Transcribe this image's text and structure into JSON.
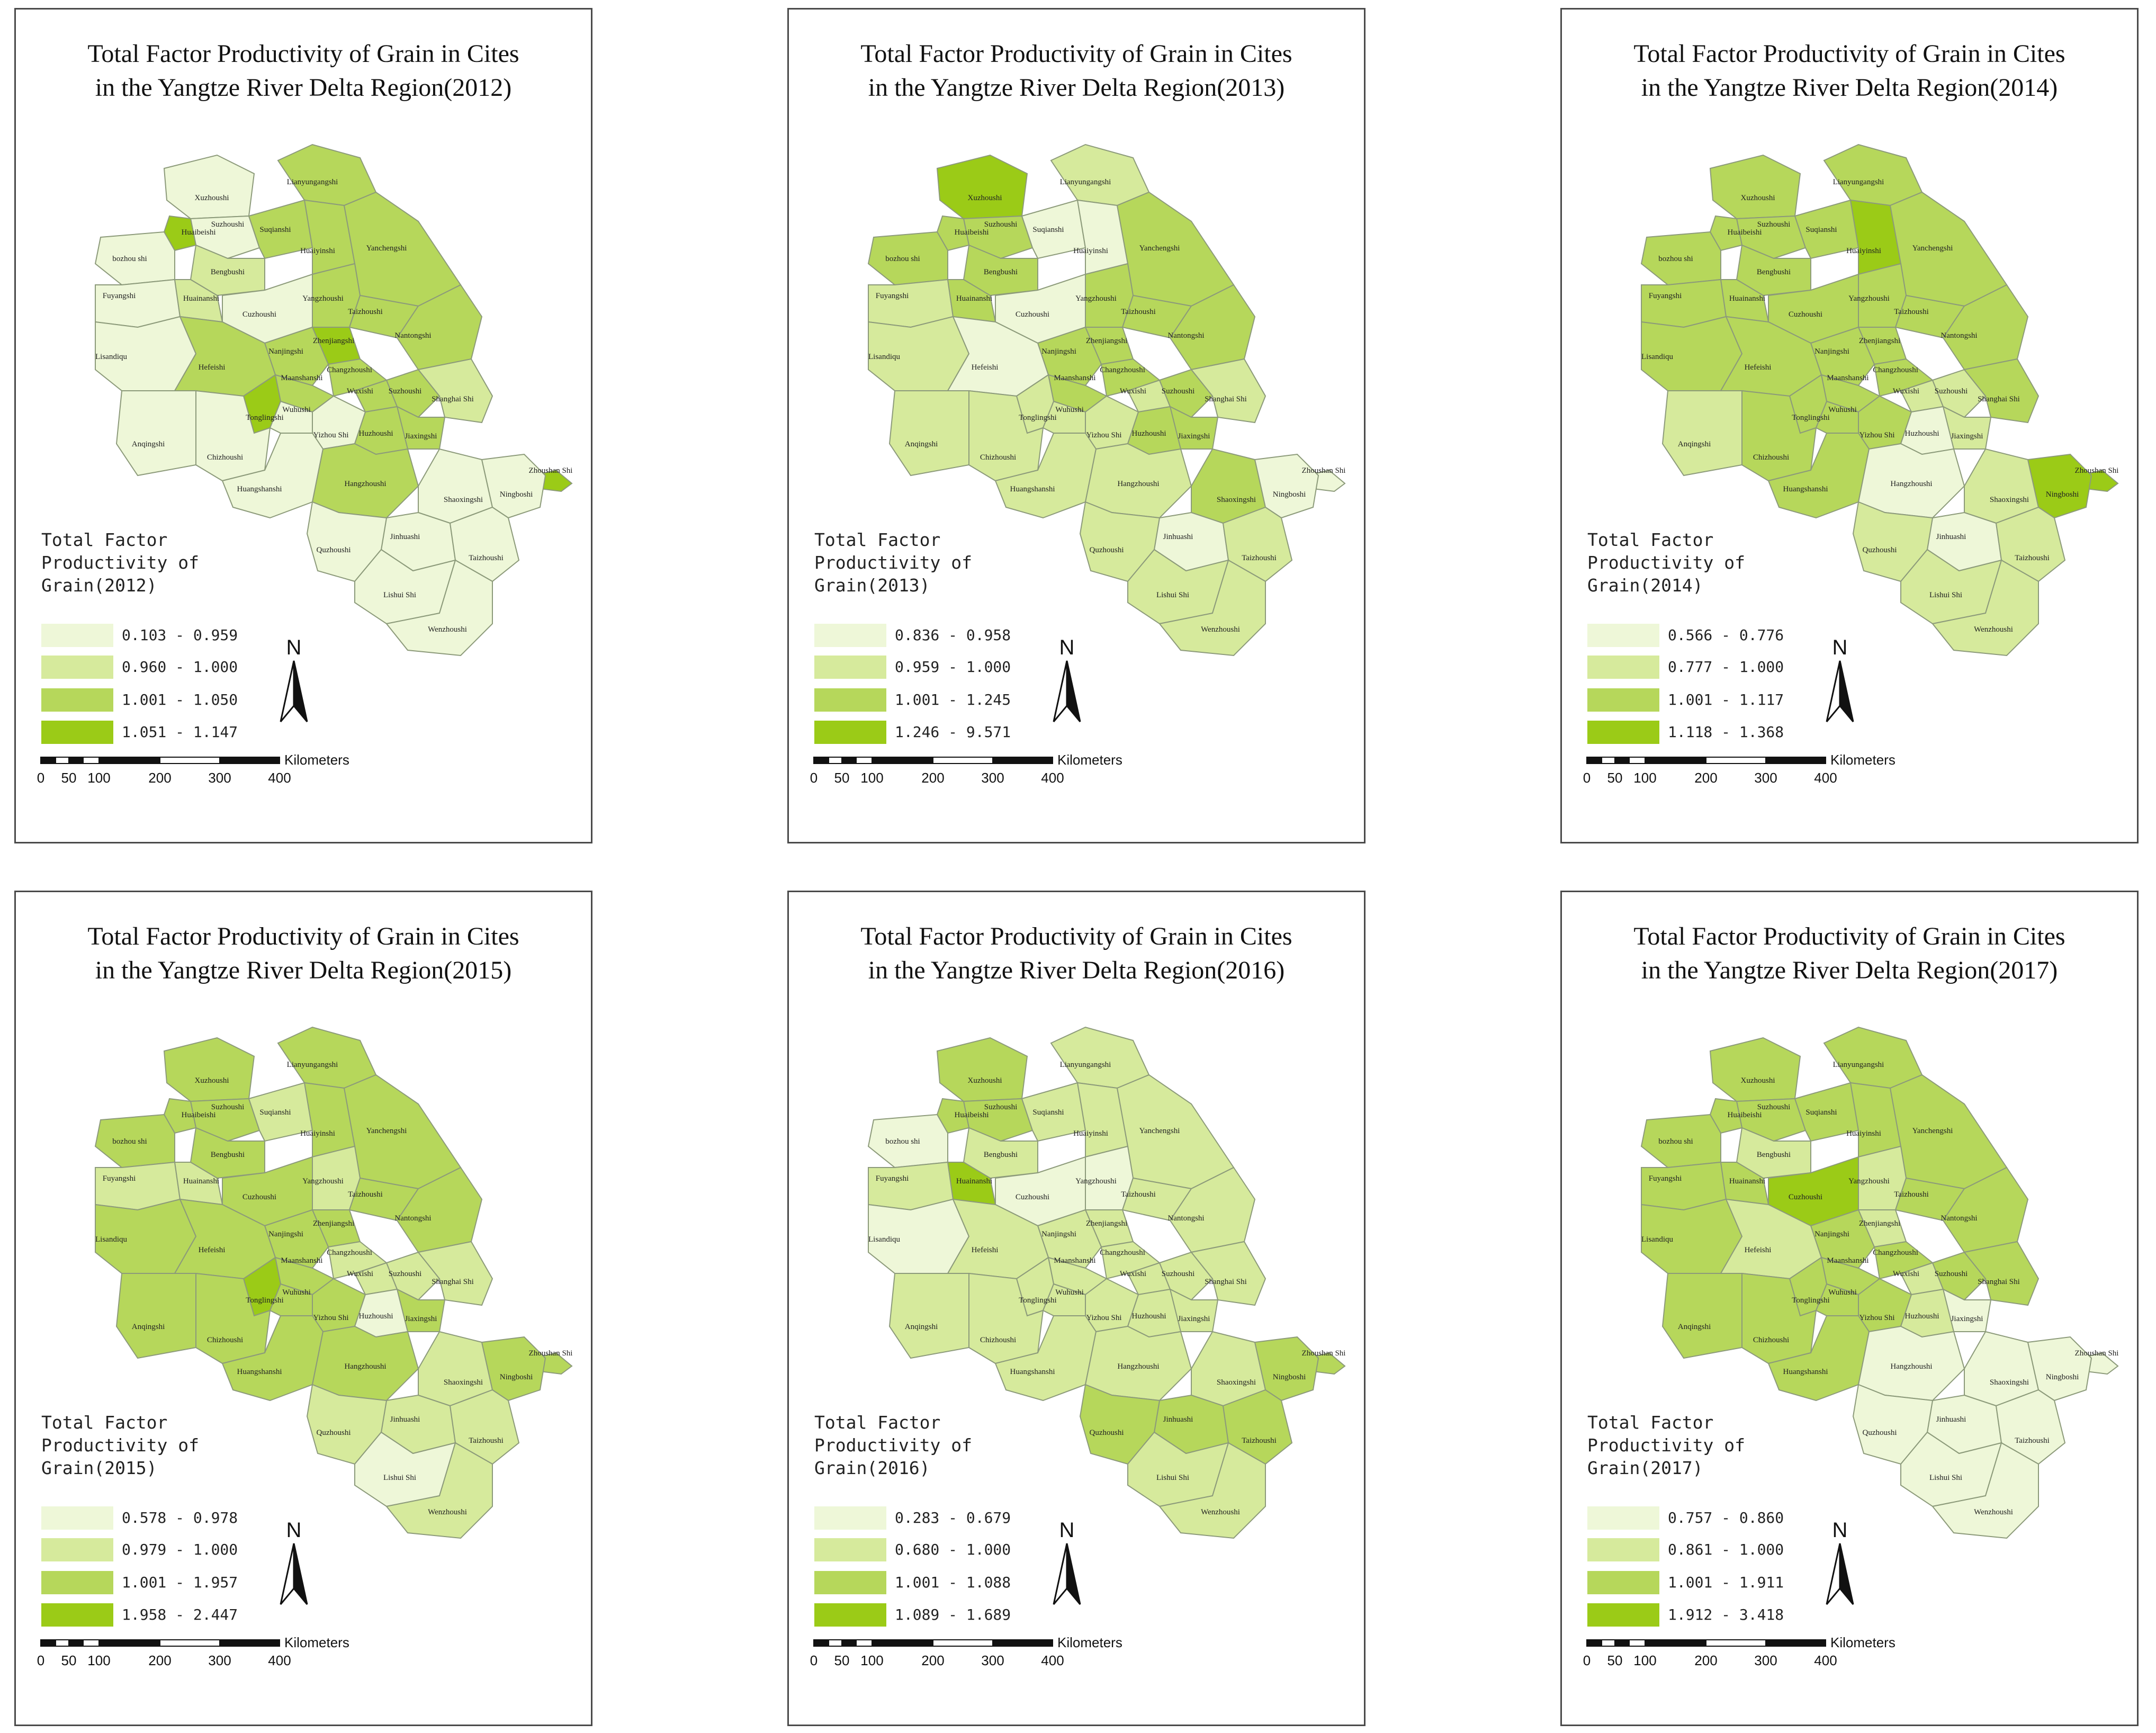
{
  "legend": {
    "title_prefix": "Total Factor\nProductivity of\nGrain"
  },
  "colors": {
    "class1": "#eef7d8",
    "class2": "#d6ea9c",
    "class3": "#b6d75b",
    "class4": "#9bcb17",
    "border": "#8c9a7a",
    "frame": "#4a4a4a"
  },
  "north_arrow": {
    "letter": "N"
  },
  "scale_bar": {
    "unit": "Kilometers",
    "ticks": [
      "0",
      "50",
      "100",
      "200",
      "300",
      "400"
    ]
  },
  "panels": [
    {
      "title_line1": "Total Factor Productivity of Grain in Cites",
      "title_line2": "in the Yangtze River Delta Region(2012)",
      "legend_title": "Total Factor\nProductivity of\nGrain(2012)",
      "classes": [
        "0.103 - 0.959",
        "0.960 - 1.000",
        "1.001 - 1.050",
        "1.051 - 1.147"
      ]
    },
    {
      "title_line1": "Total Factor Productivity of Grain in Cites",
      "title_line2": "in the Yangtze River Delta Region(2013)",
      "legend_title": "Total Factor\nProductivity of\nGrain(2013)",
      "classes": [
        "0.836 - 0.958",
        "0.959 - 1.000",
        "1.001 - 1.245",
        "1.246 - 9.571"
      ]
    },
    {
      "title_line1": "Total Factor Productivity of Grain in Cites",
      "title_line2": "in the Yangtze River Delta Region(2014)",
      "legend_title": "Total Factor\nProductivity of\nGrain(2014)",
      "classes": [
        "0.566 - 0.776",
        "0.777 - 1.000",
        "1.001 - 1.117",
        "1.118 - 1.368"
      ]
    },
    {
      "title_line1": "Total Factor Productivity of Grain in Cites",
      "title_line2": "in the Yangtze River Delta Region(2015)",
      "legend_title": "Total Factor\nProductivity of\nGrain(2015)",
      "classes": [
        "0.578 - 0.978",
        "0.979 - 1.000",
        "1.001 - 1.957",
        "1.958 - 2.447"
      ]
    },
    {
      "title_line1": "Total Factor Productivity of Grain in Cites",
      "title_line2": "in the Yangtze River Delta Region(2016)",
      "legend_title": "Total Factor\nProductivity of\nGrain(2016)",
      "classes": [
        "0.283 - 0.679",
        "0.680 - 1.000",
        "1.001 - 1.088",
        "1.089 - 1.689"
      ]
    },
    {
      "title_line1": "Total Factor Productivity of Grain in Cites",
      "title_line2": "in the Yangtze River Delta Region(2017)",
      "legend_title": "Total Factor\nProductivity of\nGrain(2017)",
      "classes": [
        "0.757 - 0.860",
        "0.861 - 1.000",
        "1.001 - 1.911",
        "1.912 - 3.418"
      ]
    }
  ],
  "city_names": [
    "Lianyungangshi",
    "Xuzhoushi",
    "Suzhoushi",
    "Huaibeishi",
    "Suqianshi",
    "Huaiyinshi",
    "Yanchengshi",
    "bozhou shi",
    "Bengbushi",
    "Fuyangshi",
    "Huainanshi",
    "Cuzhoushi",
    "Yangzhoushi",
    "Taizhoushi",
    "Zhenjiangshi",
    "Nanjingshi",
    "Nantongshi",
    "Lisandiqu",
    "Hefeishi",
    "Maanshanshi",
    "Changzhoushi",
    "Wuxishi",
    "Suzhoushi",
    "Shanghai Shi",
    "Tonglingshi",
    "Wuhushi",
    "Yizhou Shi",
    "Huzhoushi",
    "Jiaxingshi",
    "Anqingshi",
    "Chizhoushi",
    "Zhoushan Shi",
    "Huangshanshi",
    "Hangzhoushi",
    "Shaoxingshi",
    "Ningboshi",
    "Jinhuashi",
    "Quzhoushi",
    "Taizhoushi",
    "Lishui Shi",
    "Wenzhoushi"
  ],
  "panel_fills": [
    [
      3,
      1,
      1,
      4,
      3,
      3,
      3,
      1,
      2,
      1,
      2,
      1,
      3,
      3,
      4,
      3,
      3,
      1,
      3,
      3,
      3,
      3,
      3,
      2,
      4,
      1,
      1,
      3,
      3,
      1,
      1,
      4,
      1,
      3,
      1,
      1,
      1,
      1,
      1,
      1,
      1
    ],
    [
      2,
      4,
      3,
      3,
      1,
      1,
      3,
      3,
      3,
      2,
      3,
      1,
      3,
      3,
      3,
      3,
      3,
      2,
      1,
      3,
      3,
      2,
      3,
      2,
      2,
      2,
      2,
      3,
      3,
      2,
      2,
      1,
      2,
      2,
      3,
      1,
      1,
      2,
      2,
      2,
      2
    ],
    [
      3,
      3,
      3,
      3,
      3,
      4,
      3,
      3,
      3,
      3,
      3,
      3,
      3,
      3,
      3,
      3,
      3,
      3,
      3,
      3,
      3,
      2,
      2,
      3,
      3,
      3,
      3,
      1,
      2,
      2,
      3,
      4,
      3,
      1,
      2,
      4,
      1,
      2,
      2,
      2,
      2
    ],
    [
      3,
      3,
      3,
      3,
      2,
      3,
      3,
      3,
      3,
      2,
      2,
      3,
      2,
      3,
      3,
      3,
      3,
      3,
      3,
      3,
      2,
      2,
      2,
      2,
      4,
      3,
      3,
      1,
      3,
      3,
      3,
      3,
      3,
      3,
      2,
      3,
      2,
      2,
      2,
      1,
      2
    ],
    [
      2,
      3,
      3,
      3,
      2,
      2,
      2,
      1,
      2,
      2,
      4,
      1,
      1,
      2,
      2,
      2,
      2,
      1,
      2,
      2,
      2,
      2,
      2,
      2,
      2,
      2,
      2,
      2,
      2,
      2,
      2,
      3,
      2,
      2,
      2,
      3,
      3,
      3,
      3,
      2,
      2
    ],
    [
      3,
      3,
      3,
      3,
      3,
      3,
      3,
      3,
      2,
      3,
      3,
      4,
      2,
      3,
      2,
      3,
      3,
      3,
      2,
      3,
      3,
      2,
      3,
      3,
      3,
      3,
      3,
      2,
      1,
      3,
      3,
      1,
      3,
      1,
      1,
      1,
      1,
      1,
      1,
      1,
      1
    ]
  ]
}
